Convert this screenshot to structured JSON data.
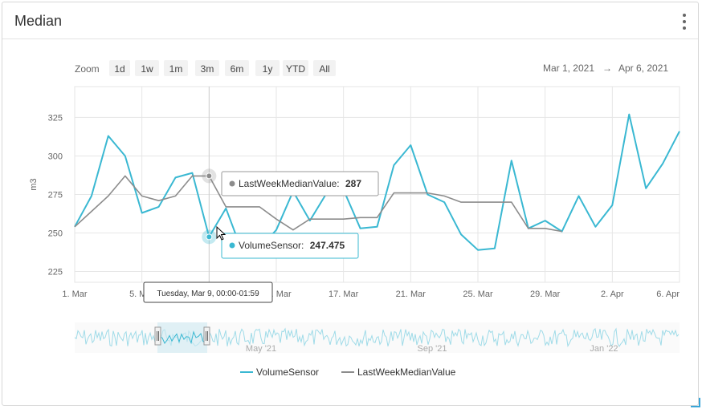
{
  "panel": {
    "title": "Median",
    "menu_icon": "kebab-menu-icon"
  },
  "zoom": {
    "label": "Zoom",
    "buttons": [
      "1d",
      "1w",
      "1m",
      "3m",
      "6m",
      "1y",
      "YTD",
      "All"
    ]
  },
  "date_range": {
    "from": "Mar 1, 2021",
    "arrow": "→",
    "to": "Apr 6, 2021"
  },
  "colors": {
    "volume": "#3ab8d2",
    "median": "#8c8c8c",
    "grid": "#e6e6e6",
    "axis_text": "#666666"
  },
  "tooltips": {
    "median": {
      "label": "LastWeekMedianValue:",
      "value": "287"
    },
    "volume": {
      "label": "VolumeSensor:",
      "value": "247.475"
    },
    "crosshair_date": "Tuesday, Mar 9, 00:00-01:59"
  },
  "navigator_labels": [
    "May '21",
    "Sep '21",
    "Jan '22"
  ],
  "chart_data": {
    "type": "line",
    "ylabel": "m3",
    "ylim": [
      218,
      345
    ],
    "yticks": [
      225,
      250,
      275,
      300,
      325
    ],
    "x_domain": [
      1,
      37
    ],
    "xticks": [
      {
        "x": 1,
        "label": "1. Mar"
      },
      {
        "x": 5,
        "label": "5. Mar"
      },
      {
        "x": 13,
        "label": "13. Mar"
      },
      {
        "x": 17,
        "label": "17. Mar"
      },
      {
        "x": 21,
        "label": "21. Mar"
      },
      {
        "x": 25,
        "label": "25. Mar"
      },
      {
        "x": 29,
        "label": "29. Mar"
      },
      {
        "x": 33,
        "label": "2. Apr"
      },
      {
        "x": 37,
        "label": "6. Apr"
      }
    ],
    "legend_position": "bottom-center",
    "grid": true,
    "series": [
      {
        "name": "VolumeSensor",
        "x": [
          1,
          2,
          3,
          4,
          5,
          6,
          7,
          8,
          9,
          10,
          11,
          12,
          13,
          14,
          15,
          16,
          17,
          18,
          19,
          20,
          21,
          22,
          23,
          24,
          25,
          26,
          27,
          28,
          29,
          30,
          31,
          32,
          33,
          34,
          35,
          36,
          37
        ],
        "y": [
          254,
          274,
          313,
          300,
          263,
          267,
          286,
          289,
          247.475,
          266,
          237,
          240,
          252,
          277,
          258,
          276,
          278,
          253,
          254,
          294,
          307,
          275,
          270,
          249,
          239,
          240,
          297,
          253,
          258,
          251,
          274,
          254,
          268,
          327,
          279,
          295,
          316
        ]
      },
      {
        "name": "LastWeekMedianValue",
        "x": [
          1,
          2,
          3,
          4,
          5,
          6,
          7,
          8,
          9,
          10,
          11,
          12,
          13,
          14,
          15,
          16,
          17,
          18,
          19,
          20,
          21,
          22,
          23,
          24,
          25,
          26,
          27,
          28,
          29,
          30
        ],
        "y": [
          254,
          264,
          274,
          287,
          274,
          271,
          274,
          287,
          287,
          267,
          267,
          267,
          259,
          252,
          259,
          259,
          259,
          260,
          260,
          276,
          276,
          276,
          274,
          270,
          270,
          270,
          270,
          253,
          253,
          251
        ]
      }
    ]
  }
}
